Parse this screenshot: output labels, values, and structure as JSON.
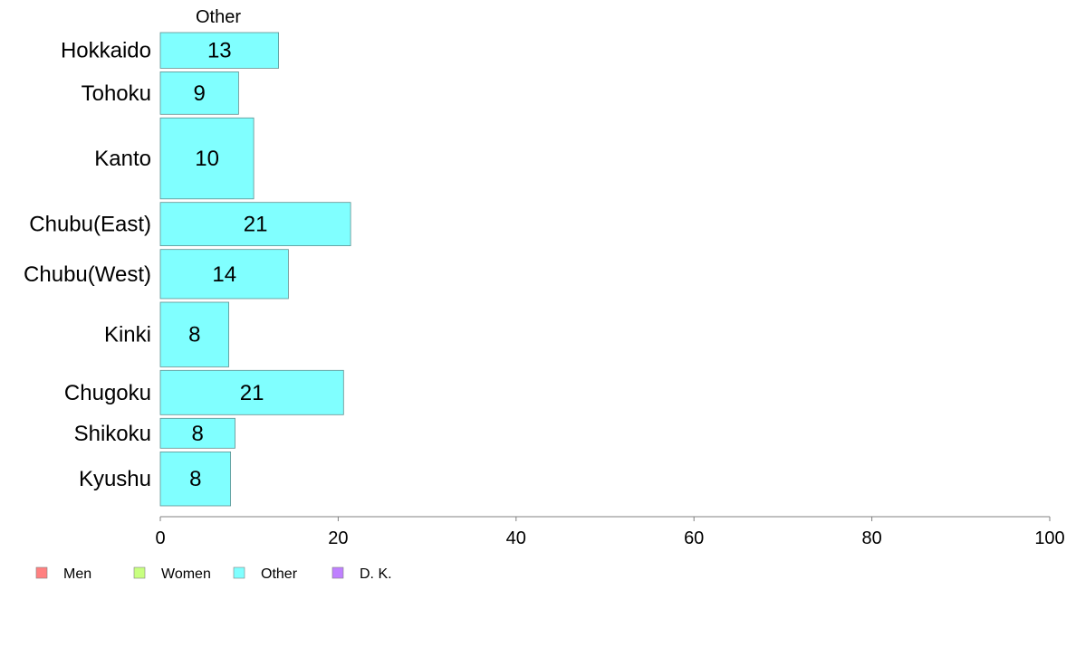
{
  "chart_data": {
    "type": "bar",
    "orientation": "horizontal",
    "title": "Other",
    "categories": [
      "Hokkaido",
      "Tohoku",
      "Kanto",
      "Chubu(East)",
      "Chubu(West)",
      "Kinki",
      "Chugoku",
      "Shikoku",
      "Kyushu"
    ],
    "category_weights": [
      37,
      44,
      84,
      45,
      51,
      67,
      46,
      31,
      56
    ],
    "series": [
      {
        "name": "Other",
        "color": "#80ffff",
        "values": [
          13.3,
          8.8,
          10.5,
          21.4,
          14.4,
          7.7,
          20.6,
          8.4,
          7.9
        ],
        "labels": [
          "13",
          "9",
          "10",
          "21",
          "14",
          "8",
          "21",
          "8",
          "8"
        ]
      }
    ],
    "xlim": [
      0,
      100
    ],
    "xticks": [
      0,
      20,
      40,
      60,
      80,
      100
    ],
    "grid": false,
    "legend": {
      "position": "bottom-left",
      "items": [
        {
          "label": "Men",
          "color": "#ff8080"
        },
        {
          "label": "Women",
          "color": "#c8ff80"
        },
        {
          "label": "Other",
          "color": "#80ffff"
        },
        {
          "label": "D. K.",
          "color": "#bf80ff"
        }
      ]
    }
  }
}
